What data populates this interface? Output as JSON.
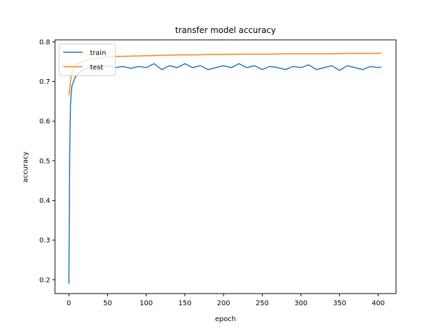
{
  "chart_data": {
    "type": "line",
    "title": "transfer model accuracy",
    "xlabel": "epoch",
    "ylabel": "accuracy",
    "xlim": [
      -18,
      423
    ],
    "ylim": [
      0.165,
      0.805
    ],
    "xticks": [
      0,
      50,
      100,
      150,
      200,
      250,
      300,
      350,
      400
    ],
    "yticks": [
      0.2,
      0.3,
      0.4,
      0.5,
      0.6,
      0.7,
      0.8
    ],
    "xtick_labels": [
      "0",
      "50",
      "100",
      "150",
      "200",
      "250",
      "300",
      "350",
      "400"
    ],
    "ytick_labels": [
      "0.2",
      "0.3",
      "0.4",
      "0.5",
      "0.6",
      "0.7",
      "0.8"
    ],
    "grid": false,
    "legend_position": "top-left",
    "series": [
      {
        "name": "train",
        "color": "#1f77b4",
        "x": [
          0,
          1,
          2,
          3,
          4,
          5,
          6,
          8,
          10,
          12,
          15,
          20,
          25,
          30,
          40,
          50,
          60,
          70,
          80,
          90,
          100,
          110,
          120,
          130,
          140,
          150,
          160,
          170,
          180,
          190,
          200,
          210,
          220,
          230,
          240,
          250,
          260,
          270,
          280,
          290,
          300,
          310,
          320,
          330,
          340,
          350,
          360,
          370,
          380,
          390,
          400,
          404
        ],
        "y": [
          0.19,
          0.52,
          0.64,
          0.67,
          0.69,
          0.695,
          0.7,
          0.71,
          0.715,
          0.72,
          0.725,
          0.73,
          0.735,
          0.737,
          0.735,
          0.74,
          0.735,
          0.738,
          0.733,
          0.738,
          0.735,
          0.745,
          0.73,
          0.74,
          0.735,
          0.745,
          0.735,
          0.74,
          0.73,
          0.735,
          0.74,
          0.735,
          0.745,
          0.735,
          0.74,
          0.73,
          0.738,
          0.735,
          0.73,
          0.738,
          0.735,
          0.742,
          0.73,
          0.735,
          0.74,
          0.728,
          0.74,
          0.735,
          0.73,
          0.738,
          0.735,
          0.737
        ]
      },
      {
        "name": "test",
        "color": "#ff7f0e",
        "x": [
          0,
          1,
          2,
          3,
          4,
          5,
          6,
          8,
          10,
          15,
          20,
          25,
          30,
          40,
          50,
          60,
          80,
          100,
          120,
          140,
          160,
          180,
          200,
          220,
          240,
          260,
          280,
          300,
          320,
          340,
          360,
          380,
          400,
          404
        ],
        "y": [
          0.665,
          0.68,
          0.7,
          0.715,
          0.725,
          0.73,
          0.735,
          0.74,
          0.745,
          0.748,
          0.752,
          0.755,
          0.757,
          0.76,
          0.762,
          0.763,
          0.764,
          0.765,
          0.766,
          0.767,
          0.767,
          0.768,
          0.768,
          0.769,
          0.769,
          0.769,
          0.77,
          0.77,
          0.77,
          0.77,
          0.771,
          0.771,
          0.771,
          0.772
        ]
      }
    ]
  }
}
